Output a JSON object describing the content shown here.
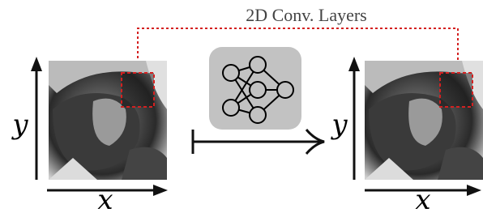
{
  "title": "2D Conv. Layers",
  "input": {
    "y_label": "y",
    "x_label": "x"
  },
  "output": {
    "y_label": "y",
    "x_label": "x"
  }
}
